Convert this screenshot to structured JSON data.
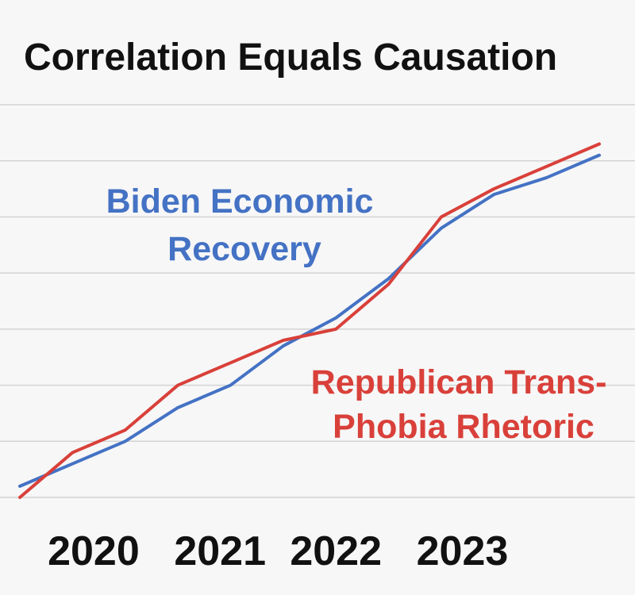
{
  "chart_data": {
    "type": "line",
    "title": "Correlation Equals Causation",
    "xlabel": "",
    "ylabel": "",
    "x": [
      0,
      0.5,
      1,
      1.5,
      2,
      2.5,
      3,
      3.5,
      4,
      4.5,
      5,
      5.5
    ],
    "x_tick_labels": [
      "2020",
      "2021",
      "2022",
      "2023"
    ],
    "x_tick_values": [
      0.7,
      1.9,
      3.0,
      4.2
    ],
    "xlim": [
      0,
      5.6
    ],
    "ylim": [
      0,
      7
    ],
    "y_gridlines": [
      0,
      1,
      2,
      3,
      4,
      5,
      6,
      7
    ],
    "grid": true,
    "series": [
      {
        "name": "Biden Economic Recovery",
        "label_lines": [
          "Biden Economic",
          "Recovery"
        ],
        "color": "#4472c4",
        "values": [
          0.2,
          0.6,
          1.0,
          1.6,
          2.0,
          2.7,
          3.2,
          3.9,
          4.8,
          5.4,
          5.7,
          6.1
        ]
      },
      {
        "name": "Republican Trans-Phobia Rhetoric",
        "label_lines": [
          "Republican Trans-",
          "Phobia Rhetoric"
        ],
        "color": "#d9403a",
        "values": [
          0.0,
          0.8,
          1.2,
          2.0,
          2.4,
          2.8,
          3.0,
          3.8,
          5.0,
          5.5,
          5.9,
          6.3
        ]
      }
    ],
    "legend": "inline"
  }
}
